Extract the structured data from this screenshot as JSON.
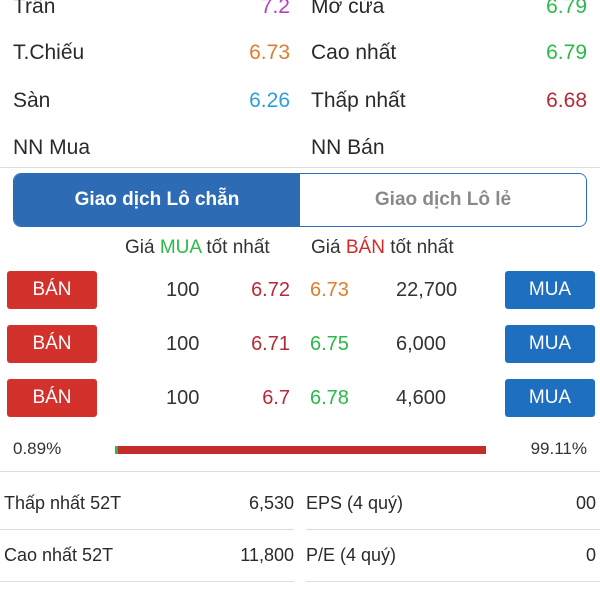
{
  "colors": {
    "ceiling": "#b93cc4",
    "reference": "#e37b2d",
    "floor": "#2f9fd8",
    "up": "#2bb94a",
    "down": "#b52a3a",
    "tab_active": "#2d6bb5",
    "sell_button": "#d3312c",
    "buy_button": "#1f6fc0"
  },
  "quote": {
    "ceiling": {
      "label": "Trần",
      "value": "7.2"
    },
    "open": {
      "label": "Mở cửa",
      "value": "6.79"
    },
    "reference": {
      "label": "T.Chiếu",
      "value": "6.73"
    },
    "high": {
      "label": "Cao nhất",
      "value": "6.79"
    },
    "floor": {
      "label": "Sàn",
      "value": "6.26"
    },
    "low": {
      "label": "Thấp nhất",
      "value": "6.68"
    },
    "foreign_buy": {
      "label": "NN Mua",
      "value": ""
    },
    "foreign_sell": {
      "label": "NN Bán",
      "value": ""
    }
  },
  "tabs": [
    {
      "label": "Giao dịch Lô chẵn",
      "active": true
    },
    {
      "label": "Giao dịch Lô lẻ",
      "active": false
    }
  ],
  "orderbook": {
    "header_bid": {
      "prefix": "Giá ",
      "side": "MUA",
      "suffix": " tốt nhất"
    },
    "header_ask": {
      "prefix": "Giá ",
      "side": "BÁN",
      "suffix": " tốt nhất"
    },
    "sell_label": "BÁN",
    "buy_label": "MUA",
    "rows": [
      {
        "bid_vol": "100",
        "bid_price": "6.72",
        "ask_price": "6.73",
        "ask_vol": "22,700"
      },
      {
        "bid_vol": "100",
        "bid_price": "6.71",
        "ask_price": "6.75",
        "ask_vol": "6,000"
      },
      {
        "bid_vol": "100",
        "bid_price": "6.7",
        "ask_price": "6.78",
        "ask_vol": "4,600"
      }
    ]
  },
  "ratio": {
    "buy_pct": "0.89%",
    "sell_pct": "99.11%",
    "buy_fraction": 0.0089
  },
  "stats": {
    "low52": {
      "label": "Thấp nhất 52T",
      "value": "6,530"
    },
    "eps": {
      "label": "EPS (4 quý)",
      "value": "00"
    },
    "high52": {
      "label": "Cao nhất 52T",
      "value": "11,800"
    },
    "pe": {
      "label": "P/E (4 quý)",
      "value": "0"
    }
  }
}
